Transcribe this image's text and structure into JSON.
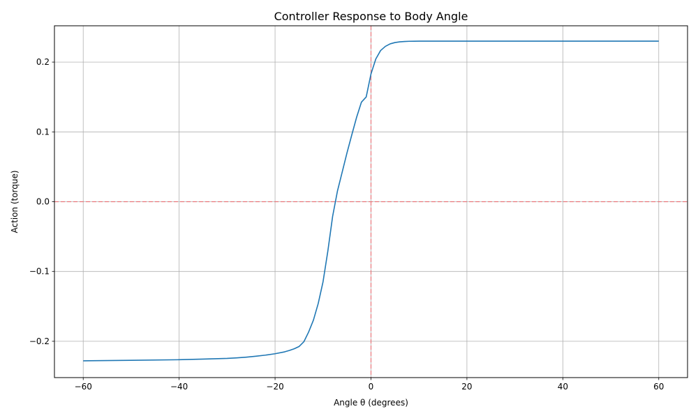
{
  "chart_data": {
    "type": "line",
    "title": "Controller Response to Body Angle",
    "xlabel": "Angle θ (degrees)",
    "ylabel": "Action (torque)",
    "xlim": [
      -66,
      66
    ],
    "ylim": [
      -0.252,
      0.252
    ],
    "xticks": [
      -60,
      -40,
      -20,
      0,
      20,
      40,
      60
    ],
    "xtick_labels": [
      "−60",
      "−40",
      "−20",
      "0",
      "20",
      "40",
      "60"
    ],
    "yticks": [
      -0.2,
      -0.1,
      0.0,
      0.1,
      0.2
    ],
    "ytick_labels": [
      "−0.2",
      "−0.1",
      "0.0",
      "0.1",
      "0.2"
    ],
    "grid": true,
    "series": [
      {
        "color": "#1f77b4",
        "x": [
          -60,
          -50,
          -40,
          -35,
          -30,
          -28,
          -26,
          -24,
          -22,
          -20,
          -18,
          -17,
          -16,
          -15,
          -14,
          -13,
          -12,
          -11,
          -10,
          -9,
          -8,
          -7,
          -6,
          -5,
          -4,
          -3,
          -2,
          -1,
          0,
          1,
          2,
          3,
          4,
          5,
          6,
          7,
          8,
          9,
          10,
          12,
          15,
          20,
          30,
          40,
          50,
          60
        ],
        "y": [
          -0.228,
          -0.2272,
          -0.2264,
          -0.2255,
          -0.2245,
          -0.2237,
          -0.2227,
          -0.2214,
          -0.2198,
          -0.2178,
          -0.2151,
          -0.2131,
          -0.2107,
          -0.2075,
          -0.2007,
          -0.1867,
          -0.1696,
          -0.1458,
          -0.1148,
          -0.071,
          -0.0211,
          0.015,
          0.0425,
          0.07,
          0.0958,
          0.1209,
          0.1425,
          0.15,
          0.183,
          0.2043,
          0.2165,
          0.2225,
          0.2261,
          0.228,
          0.229,
          0.2295,
          0.2298,
          0.2299,
          0.23,
          0.23,
          0.23,
          0.23,
          0.23,
          0.23,
          0.23,
          0.23
        ],
        "x_offset_note": ""
      }
    ],
    "reference_lines": [
      {
        "orientation": "horizontal",
        "value": 0,
        "color": "#e8767a",
        "style": "dashed"
      },
      {
        "orientation": "vertical",
        "value": 0,
        "color": "#e8767a",
        "style": "dashed"
      }
    ]
  }
}
